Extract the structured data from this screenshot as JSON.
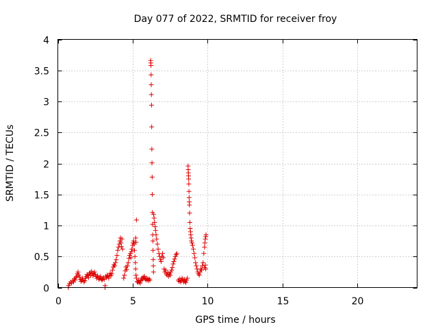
{
  "chart_data": {
    "type": "scatter",
    "title": "Day 077 of 2022, SRMTID for receiver froy",
    "xlabel": "GPS time / hours",
    "ylabel": "SRMTID / TECUs",
    "xlim": [
      0,
      24
    ],
    "ylim": [
      0,
      4
    ],
    "x_ticks": [
      0,
      5,
      10,
      15,
      20
    ],
    "y_ticks": [
      0,
      0.5,
      1,
      1.5,
      2,
      2.5,
      3,
      3.5,
      4
    ],
    "x_tick_labels": [
      "0",
      "5",
      "10",
      "15",
      "20"
    ],
    "y_tick_labels": [
      "0",
      "0.5",
      "1",
      "1.5",
      "2",
      "2.5",
      "3",
      "3.5",
      "4"
    ],
    "grid": true,
    "marker": "+",
    "marker_color": "#dd0000",
    "series": [
      {
        "name": "SRMTID",
        "points": [
          [
            0.7,
            0.0
          ],
          [
            0.72,
            0.03
          ],
          [
            0.78,
            0.06
          ],
          [
            0.85,
            0.09
          ],
          [
            0.92,
            0.07
          ],
          [
            1.0,
            0.11
          ],
          [
            1.05,
            0.09
          ],
          [
            1.1,
            0.14
          ],
          [
            1.15,
            0.12
          ],
          [
            1.2,
            0.16
          ],
          [
            1.25,
            0.18
          ],
          [
            1.3,
            0.22
          ],
          [
            1.35,
            0.25
          ],
          [
            1.4,
            0.2
          ],
          [
            1.45,
            0.17
          ],
          [
            1.5,
            0.13
          ],
          [
            1.55,
            0.1
          ],
          [
            1.6,
            0.12
          ],
          [
            1.65,
            0.15
          ],
          [
            1.7,
            0.12
          ],
          [
            1.75,
            0.09
          ],
          [
            1.8,
            0.11
          ],
          [
            1.85,
            0.15
          ],
          [
            1.9,
            0.18
          ],
          [
            1.95,
            0.21
          ],
          [
            2.0,
            0.19
          ],
          [
            2.05,
            0.16
          ],
          [
            2.1,
            0.22
          ],
          [
            2.15,
            0.24
          ],
          [
            2.2,
            0.2
          ],
          [
            2.25,
            0.26
          ],
          [
            2.3,
            0.23
          ],
          [
            2.35,
            0.19
          ],
          [
            2.4,
            0.22
          ],
          [
            2.45,
            0.25
          ],
          [
            2.5,
            0.21
          ],
          [
            2.55,
            0.18
          ],
          [
            2.6,
            0.15
          ],
          [
            2.65,
            0.19
          ],
          [
            2.7,
            0.16
          ],
          [
            2.75,
            0.13
          ],
          [
            2.8,
            0.15
          ],
          [
            2.85,
            0.18
          ],
          [
            2.9,
            0.14
          ],
          [
            2.95,
            0.12
          ],
          [
            3.0,
            0.14
          ],
          [
            3.05,
            0.16
          ],
          [
            3.1,
            0.13
          ],
          [
            3.15,
            0.0
          ],
          [
            3.16,
            0.03
          ],
          [
            3.2,
            0.18
          ],
          [
            3.25,
            0.16
          ],
          [
            3.3,
            0.2
          ],
          [
            3.35,
            0.18
          ],
          [
            3.4,
            0.15
          ],
          [
            3.45,
            0.2
          ],
          [
            3.5,
            0.23
          ],
          [
            3.55,
            0.19
          ],
          [
            3.6,
            0.22
          ],
          [
            3.65,
            0.28
          ],
          [
            3.7,
            0.33
          ],
          [
            3.75,
            0.37
          ],
          [
            3.8,
            0.35
          ],
          [
            3.85,
            0.4
          ],
          [
            3.9,
            0.45
          ],
          [
            3.95,
            0.52
          ],
          [
            4.0,
            0.6
          ],
          [
            4.05,
            0.65
          ],
          [
            4.1,
            0.7
          ],
          [
            4.15,
            0.75
          ],
          [
            4.18,
            0.8
          ],
          [
            4.22,
            0.72
          ],
          [
            4.25,
            0.66
          ],
          [
            4.28,
            0.78
          ],
          [
            4.32,
            0.62
          ],
          [
            4.4,
            0.15
          ],
          [
            4.45,
            0.2
          ],
          [
            4.5,
            0.27
          ],
          [
            4.55,
            0.33
          ],
          [
            4.6,
            0.29
          ],
          [
            4.65,
            0.35
          ],
          [
            4.7,
            0.4
          ],
          [
            4.75,
            0.47
          ],
          [
            4.8,
            0.52
          ],
          [
            4.85,
            0.55
          ],
          [
            4.88,
            0.48
          ],
          [
            4.92,
            0.58
          ],
          [
            4.95,
            0.62
          ],
          [
            5.0,
            0.68
          ],
          [
            5.03,
            0.72
          ],
          [
            5.06,
            0.75
          ],
          [
            5.1,
            0.7
          ],
          [
            5.12,
            0.6
          ],
          [
            5.15,
            0.5
          ],
          [
            5.18,
            0.4
          ],
          [
            5.2,
            0.3
          ],
          [
            5.22,
            0.2
          ],
          [
            5.25,
            0.15
          ],
          [
            5.2,
            0.8
          ],
          [
            5.22,
            0.73
          ],
          [
            5.25,
            1.09
          ],
          [
            5.3,
            0.1
          ],
          [
            5.35,
            0.08
          ],
          [
            5.4,
            0.12
          ],
          [
            5.45,
            0.09
          ],
          [
            5.5,
            0.07
          ],
          [
            5.55,
            0.11
          ],
          [
            5.6,
            0.15
          ],
          [
            5.65,
            0.13
          ],
          [
            5.7,
            0.17
          ],
          [
            5.75,
            0.15
          ],
          [
            5.8,
            0.18
          ],
          [
            5.85,
            0.14
          ],
          [
            5.9,
            0.12
          ],
          [
            5.95,
            0.15
          ],
          [
            6.0,
            0.13
          ],
          [
            6.05,
            0.11
          ],
          [
            6.1,
            0.14
          ],
          [
            6.15,
            0.12
          ],
          [
            6.2,
            3.66
          ],
          [
            6.21,
            3.62
          ],
          [
            6.22,
            3.58
          ],
          [
            6.23,
            3.43
          ],
          [
            6.24,
            3.27
          ],
          [
            6.25,
            3.11
          ],
          [
            6.26,
            2.94
          ],
          [
            6.27,
            2.59
          ],
          [
            6.28,
            2.23
          ],
          [
            6.29,
            2.01
          ],
          [
            6.3,
            1.78
          ],
          [
            6.31,
            1.5
          ],
          [
            6.32,
            1.21
          ],
          [
            6.33,
            1.02
          ],
          [
            6.34,
            0.85
          ],
          [
            6.35,
            0.75
          ],
          [
            6.36,
            0.6
          ],
          [
            6.37,
            0.45
          ],
          [
            6.38,
            0.35
          ],
          [
            6.39,
            0.25
          ],
          [
            6.4,
            1.18
          ],
          [
            6.43,
            1.12
          ],
          [
            6.46,
            1.05
          ],
          [
            6.5,
            0.98
          ],
          [
            6.53,
            0.92
          ],
          [
            6.56,
            0.85
          ],
          [
            6.6,
            0.78
          ],
          [
            6.65,
            0.7
          ],
          [
            6.7,
            0.62
          ],
          [
            6.75,
            0.55
          ],
          [
            6.8,
            0.5
          ],
          [
            6.85,
            0.45
          ],
          [
            6.9,
            0.42
          ],
          [
            6.95,
            0.5
          ],
          [
            7.0,
            0.55
          ],
          [
            7.05,
            0.48
          ],
          [
            7.1,
            0.3
          ],
          [
            7.15,
            0.25
          ],
          [
            7.2,
            0.28
          ],
          [
            7.25,
            0.22
          ],
          [
            7.3,
            0.2
          ],
          [
            7.35,
            0.24
          ],
          [
            7.4,
            0.18
          ],
          [
            7.45,
            0.22
          ],
          [
            7.5,
            0.2
          ],
          [
            7.55,
            0.25
          ],
          [
            7.6,
            0.28
          ],
          [
            7.65,
            0.32
          ],
          [
            7.7,
            0.38
          ],
          [
            7.75,
            0.42
          ],
          [
            7.8,
            0.46
          ],
          [
            7.85,
            0.5
          ],
          [
            7.9,
            0.53
          ],
          [
            7.95,
            0.55
          ],
          [
            8.05,
            0.12
          ],
          [
            8.1,
            0.1
          ],
          [
            8.15,
            0.14
          ],
          [
            8.2,
            0.09
          ],
          [
            8.25,
            0.11
          ],
          [
            8.3,
            0.15
          ],
          [
            8.35,
            0.12
          ],
          [
            8.4,
            0.09
          ],
          [
            8.45,
            0.13
          ],
          [
            8.5,
            0.1
          ],
          [
            8.55,
            0.08
          ],
          [
            8.6,
            0.12
          ],
          [
            8.65,
            0.15
          ],
          [
            8.7,
            1.96
          ],
          [
            8.71,
            1.9
          ],
          [
            8.72,
            1.85
          ],
          [
            8.73,
            1.8
          ],
          [
            8.74,
            1.75
          ],
          [
            8.75,
            1.67
          ],
          [
            8.76,
            1.55
          ],
          [
            8.77,
            1.45
          ],
          [
            8.78,
            1.38
          ],
          [
            8.79,
            1.33
          ],
          [
            8.8,
            1.2
          ],
          [
            8.82,
            1.05
          ],
          [
            8.84,
            0.95
          ],
          [
            8.86,
            0.9
          ],
          [
            8.88,
            0.85
          ],
          [
            8.9,
            0.8
          ],
          [
            8.93,
            0.75
          ],
          [
            8.96,
            0.72
          ],
          [
            9.0,
            0.68
          ],
          [
            9.05,
            0.62
          ],
          [
            9.1,
            0.55
          ],
          [
            9.15,
            0.48
          ],
          [
            9.2,
            0.4
          ],
          [
            9.25,
            0.35
          ],
          [
            9.3,
            0.3
          ],
          [
            9.35,
            0.25
          ],
          [
            9.4,
            0.22
          ],
          [
            9.45,
            0.2
          ],
          [
            9.5,
            0.25
          ],
          [
            9.55,
            0.3
          ],
          [
            9.6,
            0.28
          ],
          [
            9.65,
            0.35
          ],
          [
            9.7,
            0.4
          ],
          [
            9.75,
            0.55
          ],
          [
            9.8,
            0.65
          ],
          [
            9.82,
            0.72
          ],
          [
            9.85,
            0.78
          ],
          [
            9.88,
            0.82
          ],
          [
            9.9,
            0.85
          ],
          [
            9.8,
            0.32
          ],
          [
            9.85,
            0.36
          ],
          [
            9.88,
            0.3
          ]
        ]
      }
    ]
  }
}
